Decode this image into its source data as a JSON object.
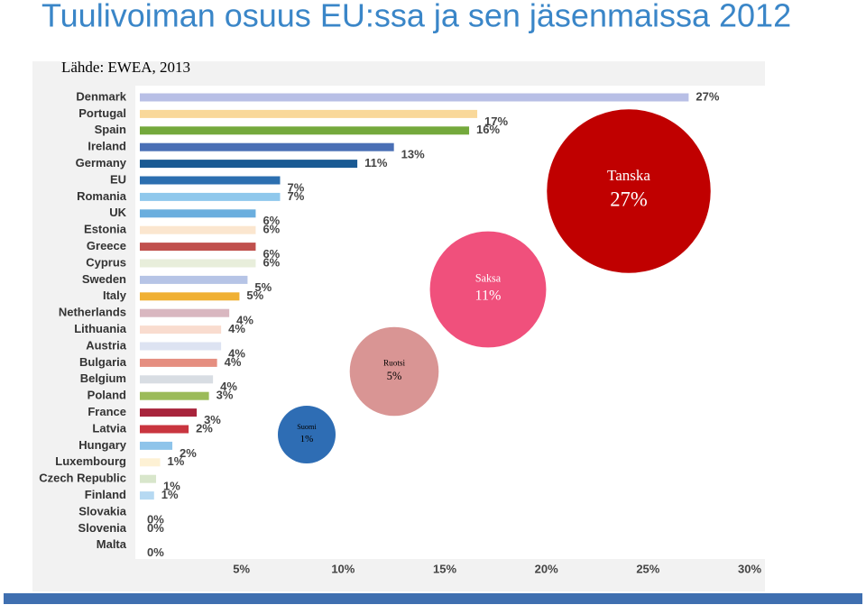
{
  "chart_data": {
    "type": "bar",
    "orientation": "horizontal",
    "title": "Tuulivoiman osuus EU:ssa ja sen jäsenmaissa 2012",
    "subtitle": "Lähde: EWEA, 2013",
    "categories": [
      "Denmark",
      "Portugal",
      "Spain",
      "Ireland",
      "Germany",
      "EU",
      "Romania",
      "UK",
      "Estonia",
      "Greece",
      "Cyprus",
      "Sweden",
      "Italy",
      "Netherlands",
      "Lithuania",
      "Austria",
      "Bulgaria",
      "Belgium",
      "Poland",
      "France",
      "Latvia",
      "Hungary",
      "Luxembourg",
      "Czech Republic",
      "Finland",
      "Slovakia",
      "Slovenia",
      "Malta"
    ],
    "values": [
      27.0,
      16.6,
      16.2,
      12.5,
      10.7,
      6.9,
      6.9,
      5.7,
      5.7,
      5.7,
      5.7,
      5.3,
      4.9,
      4.4,
      4.0,
      4.0,
      3.8,
      3.6,
      3.4,
      2.8,
      2.4,
      1.6,
      1.0,
      0.8,
      0.7,
      0,
      0,
      0
    ],
    "value_labels": [
      "27%",
      "17%",
      "16%",
      "13%",
      "11%",
      "7%",
      "7%",
      "6%",
      "6%",
      "6%",
      "6%",
      "5%",
      "5%",
      "4%",
      "4%",
      "4%",
      "4%",
      "4%",
      "3%",
      "3%",
      "2%",
      "2%",
      "1%",
      "1%",
      "1%",
      "0%",
      "0%",
      "0%"
    ],
    "colors": [
      "#b8bfe6",
      "#f9d89a",
      "#74a93c",
      "#4a6fb5",
      "#1a5a93",
      "#2c6fb0",
      "#8fc8ec",
      "#6aaede",
      "#fbe6cf",
      "#c0504d",
      "#e8eedb",
      "#b6c4e6",
      "#f0b033",
      "#d9b7c0",
      "#f9dccf",
      "#dde3f2",
      "#e58e80",
      "#d8dde3",
      "#9bbb59",
      "#a8243c",
      "#c9353f",
      "#8ec4ea",
      "#fdf1d4",
      "#d8e6cb",
      "#b6d9f2",
      "#cccccc",
      "#cccccc",
      "#cccccc"
    ],
    "xlim": [
      0,
      30
    ],
    "xticks": [
      {
        "value": 5,
        "label": "5%"
      },
      {
        "value": 10,
        "label": "10%"
      },
      {
        "value": 15,
        "label": "15%"
      },
      {
        "value": 20,
        "label": "20%"
      },
      {
        "value": 25,
        "label": "25%"
      },
      {
        "value": 30,
        "label": "30%"
      }
    ],
    "grid": false,
    "bubbles": [
      {
        "label": "Tanska",
        "value": 27,
        "value_label": "27%",
        "color": "#c00000"
      },
      {
        "label": "Saksa",
        "value": 11,
        "value_label": "11%",
        "color": "#f0507c"
      },
      {
        "label": "Ruotsi",
        "value": 5,
        "value_label": "5%",
        "color": "#d99594"
      },
      {
        "label": "Suomi",
        "value": 1,
        "value_label": "1%",
        "color": "#2e6db4"
      }
    ]
  }
}
